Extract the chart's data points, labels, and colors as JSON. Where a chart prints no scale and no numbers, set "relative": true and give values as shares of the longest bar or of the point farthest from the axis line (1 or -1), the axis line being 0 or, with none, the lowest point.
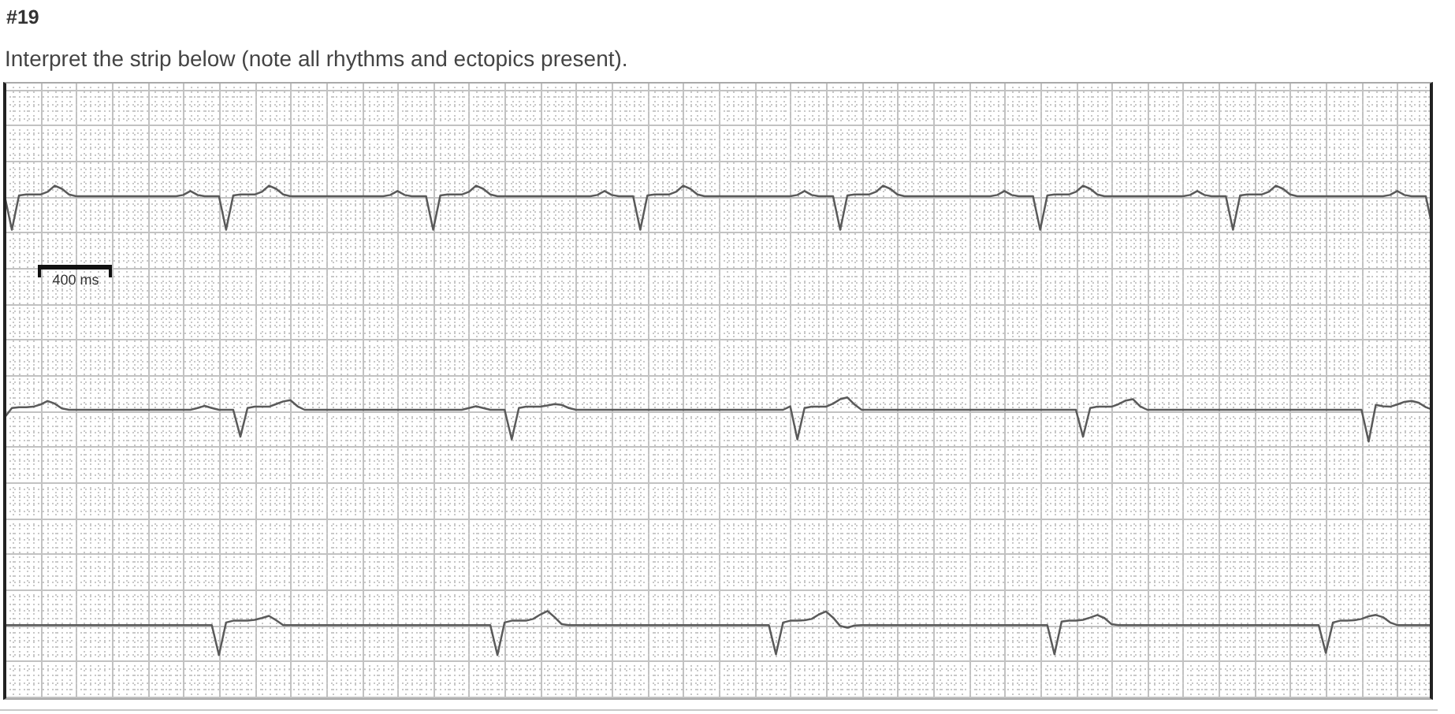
{
  "chart_data": [
    {
      "type": "line",
      "title": "#19",
      "subtitle": "Interpret the strip below (note all rhythms and ectopics present).",
      "annotations": [
        "400 ms"
      ],
      "relative": true,
      "grid": true,
      "marker": "none",
      "line_style": "solid",
      "tick_labels": false,
      "color": "#5a5a5a",
      "categories": [
        null,
        null,
        null,
        null,
        null,
        null,
        null,
        null,
        null,
        null,
        null,
        null,
        null,
        null,
        null,
        null,
        null,
        null,
        null,
        null,
        null,
        null,
        null,
        null,
        null,
        null,
        null,
        null,
        null,
        null,
        null,
        null,
        null,
        null,
        null,
        null,
        null,
        null,
        null,
        null,
        null,
        null,
        null,
        null,
        null,
        null,
        null,
        null,
        null,
        null,
        null,
        null,
        null,
        null,
        null,
        null,
        null,
        null,
        null,
        null,
        null,
        null,
        null,
        null,
        null,
        null,
        null,
        null,
        null,
        null,
        null,
        null,
        null,
        null,
        null,
        null,
        null,
        null,
        null,
        null,
        null,
        null,
        null,
        null,
        null,
        null,
        null,
        null,
        null,
        null,
        null,
        null,
        null,
        null,
        null,
        null,
        null,
        null,
        null,
        null,
        null,
        null,
        null,
        null,
        null,
        null,
        null,
        null,
        null,
        null,
        null,
        null,
        null,
        null,
        null,
        null,
        null,
        null,
        null,
        null,
        null,
        null,
        null,
        null,
        null,
        null,
        null,
        null,
        null,
        null,
        null,
        null,
        null,
        null,
        null,
        null,
        null,
        null,
        null,
        null,
        null,
        null,
        null,
        null,
        null,
        null,
        null,
        null,
        null,
        null,
        null,
        null,
        null,
        null,
        null,
        null,
        null,
        null,
        null,
        null,
        null,
        null,
        null,
        null,
        null,
        null,
        null,
        null,
        null,
        null,
        null,
        null,
        null,
        null,
        null,
        null,
        null,
        null,
        null,
        null,
        null,
        null,
        null,
        null,
        null,
        null,
        null,
        null,
        null,
        null,
        null,
        null,
        null,
        null,
        null,
        null,
        null,
        null,
        null,
        null,
        null
      ],
      "values": [
        0.76,
        0,
        0.78,
        0.8,
        0.8,
        0.8,
        0.86,
        1,
        0.93,
        0.8,
        0.76,
        0.76,
        0.76,
        0.76,
        0.76,
        0.76,
        0.76,
        0.76,
        0.76,
        0.76,
        0.76,
        0.76,
        0.76,
        0.76,
        0.76,
        0.79,
        0.88,
        0.79,
        0.76,
        0.76,
        0.76,
        0,
        0.78,
        0.8,
        0.8,
        0.8,
        0.86,
        1,
        0.93,
        0.8,
        0.76,
        0.76,
        0.76,
        0.76,
        0.76,
        0.76,
        0.76,
        0.76,
        0.76,
        0.76,
        0.76,
        0.76,
        0.76,
        0.76,
        0.79,
        0.88,
        0.79,
        0.76,
        0.76,
        0.76,
        0,
        0.78,
        0.8,
        0.8,
        0.8,
        0.86,
        1,
        0.93,
        0.8,
        0.76,
        0.76,
        0.76,
        0.76,
        0.76,
        0.76,
        0.76,
        0.76,
        0.76,
        0.76,
        0.76,
        0.76,
        0.76,
        0.76,
        0.79,
        0.88,
        0.79,
        0.76,
        0.76,
        0.76,
        0,
        0.78,
        0.8,
        0.8,
        0.8,
        0.86,
        1,
        0.93,
        0.8,
        0.76,
        0.76,
        0.76,
        0.76,
        0.76,
        0.76,
        0.76,
        0.76,
        0.76,
        0.76,
        0.76,
        0.76,
        0.76,
        0.79,
        0.88,
        0.79,
        0.76,
        0.76,
        0.76,
        0,
        0.78,
        0.8,
        0.8,
        0.8,
        0.86,
        1,
        0.93,
        0.8,
        0.76,
        0.76,
        0.76,
        0.76,
        0.76,
        0.76,
        0.76,
        0.76,
        0.76,
        0.76,
        0.76,
        0.76,
        0.76,
        0.79,
        0.88,
        0.79,
        0.76,
        0.76,
        0.76,
        0,
        0.78,
        0.8,
        0.8,
        0.8,
        0.86,
        1,
        0.93,
        0.8,
        0.76,
        0.76,
        0.76,
        0.76,
        0.76,
        0.76,
        0.76,
        0.76,
        0.76,
        0.76,
        0.76,
        0.76,
        0.79,
        0.88,
        0.79,
        0.76,
        0.76,
        0.76,
        0,
        0.78,
        0.8,
        0.8,
        0.8,
        0.86,
        1,
        0.93,
        0.8,
        0.76,
        0.76,
        0.76,
        0.76,
        0.76,
        0.76,
        0.76,
        0.76,
        0.76,
        0.76,
        0.76,
        0.76,
        0.76,
        0.79,
        0.88,
        0.79,
        0.76,
        0.76,
        0.76,
        0
      ]
    },
    {
      "type": "line",
      "relative": true,
      "grid": true,
      "marker": "none",
      "line_style": "solid",
      "tick_labels": false,
      "color": "#5a5a5a",
      "categories": [
        null,
        null,
        null,
        null,
        null,
        null,
        null,
        null,
        null,
        null,
        null,
        null,
        null,
        null,
        null,
        null,
        null,
        null,
        null,
        null,
        null,
        null,
        null,
        null,
        null,
        null,
        null,
        null,
        null,
        null,
        null,
        null,
        null,
        null,
        null,
        null,
        null,
        null,
        null,
        null,
        null,
        null,
        null,
        null,
        null,
        null,
        null,
        null,
        null,
        null,
        null,
        null,
        null,
        null,
        null,
        null,
        null,
        null,
        null,
        null,
        null,
        null,
        null,
        null,
        null,
        null,
        null,
        null,
        null,
        null,
        null,
        null,
        null,
        null,
        null,
        null,
        null,
        null,
        null,
        null,
        null,
        null,
        null,
        null,
        null,
        null,
        null,
        null,
        null,
        null,
        null,
        null,
        null,
        null,
        null,
        null,
        null,
        null,
        null,
        null,
        null,
        null,
        null,
        null,
        null,
        null,
        null,
        null,
        null,
        null,
        null,
        null,
        null,
        null,
        null,
        null,
        null,
        null,
        null,
        null,
        null,
        null,
        null,
        null,
        null,
        null,
        null,
        null,
        null,
        null,
        null,
        null,
        null,
        null,
        null,
        null,
        null,
        null,
        null,
        null,
        null,
        null,
        null,
        null,
        null,
        null,
        null,
        null,
        null,
        null,
        null,
        null,
        null,
        null,
        null,
        null,
        null,
        null,
        null,
        null,
        null,
        null,
        null,
        null,
        null,
        null,
        null,
        null,
        null,
        null,
        null,
        null,
        null,
        null,
        null,
        null,
        null,
        null,
        null,
        null,
        null,
        null,
        null,
        null,
        null,
        null,
        null,
        null,
        null,
        null,
        null,
        null,
        null,
        null,
        null,
        null,
        null,
        null,
        null,
        null,
        null
      ],
      "values": [
        0.55,
        0.76,
        0.78,
        0.78,
        0.79,
        0.84,
        0.92,
        0.86,
        0.75,
        0.72,
        0.72,
        0.72,
        0.72,
        0.72,
        0.72,
        0.72,
        0.72,
        0.72,
        0.72,
        0.72,
        0.72,
        0.72,
        0.72,
        0.72,
        0.72,
        0.72,
        0.72,
        0.76,
        0.81,
        0.76,
        0.72,
        0.72,
        0.72,
        0.11,
        0.76,
        0.79,
        0.79,
        0.79,
        0.85,
        0.91,
        0.94,
        0.8,
        0.72,
        0.72,
        0.72,
        0.72,
        0.72,
        0.72,
        0.72,
        0.72,
        0.72,
        0.72,
        0.72,
        0.72,
        0.72,
        0.72,
        0.72,
        0.72,
        0.72,
        0.72,
        0.72,
        0.72,
        0.72,
        0.72,
        0.72,
        0.76,
        0.8,
        0.76,
        0.72,
        0.72,
        0.72,
        0.05,
        0.76,
        0.79,
        0.79,
        0.79,
        0.82,
        0.85,
        0.83,
        0.76,
        0.72,
        0.72,
        0.72,
        0.72,
        0.72,
        0.72,
        0.72,
        0.72,
        0.72,
        0.72,
        0.72,
        0.72,
        0.72,
        0.72,
        0.72,
        0.72,
        0.72,
        0.72,
        0.72,
        0.72,
        0.72,
        0.72,
        0.72,
        0.72,
        0.72,
        0.72,
        0.72,
        0.72,
        0.72,
        0.72,
        0.8,
        0.05,
        0.76,
        0.79,
        0.79,
        0.79,
        0.86,
        0.96,
        1,
        0.84,
        0.72,
        0.72,
        0.72,
        0.72,
        0.72,
        0.72,
        0.72,
        0.72,
        0.72,
        0.72,
        0.72,
        0.72,
        0.72,
        0.72,
        0.72,
        0.72,
        0.72,
        0.72,
        0.72,
        0.72,
        0.72,
        0.72,
        0.72,
        0.72,
        0.72,
        0.72,
        0.72,
        0.72,
        0.72,
        0.72,
        0.72,
        0.11,
        0.76,
        0.79,
        0.79,
        0.79,
        0.85,
        0.93,
        0.96,
        0.8,
        0.72,
        0.72,
        0.72,
        0.72,
        0.72,
        0.72,
        0.72,
        0.72,
        0.72,
        0.72,
        0.72,
        0.72,
        0.72,
        0.72,
        0.72,
        0.72,
        0.72,
        0.72,
        0.72,
        0.72,
        0.72,
        0.72,
        0.72,
        0.72,
        0.72,
        0.72,
        0.72,
        0.72,
        0.72,
        0.72,
        0.72,
        0,
        0.83,
        0.8,
        0.79,
        0.84,
        0.9,
        0.92,
        0.88,
        0.78,
        0.72
      ]
    },
    {
      "type": "line",
      "relative": true,
      "grid": true,
      "marker": "none",
      "line_style": "solid",
      "tick_labels": false,
      "color": "#5a5a5a",
      "categories": [
        null,
        null,
        null,
        null,
        null,
        null,
        null,
        null,
        null,
        null,
        null,
        null,
        null,
        null,
        null,
        null,
        null,
        null,
        null,
        null,
        null,
        null,
        null,
        null,
        null,
        null,
        null,
        null,
        null,
        null,
        null,
        null,
        null,
        null,
        null,
        null,
        null,
        null,
        null,
        null,
        null,
        null,
        null,
        null,
        null,
        null,
        null,
        null,
        null,
        null,
        null,
        null,
        null,
        null,
        null,
        null,
        null,
        null,
        null,
        null,
        null,
        null,
        null,
        null,
        null,
        null,
        null,
        null,
        null,
        null,
        null,
        null,
        null,
        null,
        null,
        null,
        null,
        null,
        null,
        null,
        null,
        null,
        null,
        null,
        null,
        null,
        null,
        null,
        null,
        null,
        null,
        null,
        null,
        null,
        null,
        null,
        null,
        null,
        null,
        null,
        null,
        null,
        null,
        null,
        null,
        null,
        null,
        null,
        null,
        null,
        null,
        null,
        null,
        null,
        null,
        null,
        null,
        null,
        null,
        null,
        null,
        null,
        null,
        null,
        null,
        null,
        null,
        null,
        null,
        null,
        null,
        null,
        null,
        null,
        null,
        null,
        null,
        null,
        null,
        null,
        null,
        null,
        null,
        null,
        null,
        null,
        null,
        null,
        null,
        null,
        null,
        null,
        null,
        null,
        null,
        null,
        null,
        null,
        null,
        null,
        null,
        null,
        null,
        null,
        null,
        null,
        null,
        null,
        null,
        null,
        null,
        null,
        null,
        null,
        null,
        null,
        null,
        null,
        null,
        null,
        null,
        null,
        null,
        null,
        null,
        null,
        null,
        null,
        null,
        null,
        null,
        null,
        null,
        null,
        null,
        null,
        null,
        null,
        null,
        null,
        null
      ],
      "values": [
        0.68,
        0.68,
        0.68,
        0.68,
        0.68,
        0.68,
        0.68,
        0.68,
        0.68,
        0.68,
        0.68,
        0.68,
        0.68,
        0.68,
        0.68,
        0.68,
        0.68,
        0.68,
        0.68,
        0.68,
        0.68,
        0.68,
        0.68,
        0.68,
        0.68,
        0.68,
        0.68,
        0.68,
        0.68,
        0.68,
        0,
        0.74,
        0.78,
        0.78,
        0.78,
        0.8,
        0.84,
        0.89,
        0.79,
        0.68,
        0.68,
        0.68,
        0.68,
        0.68,
        0.68,
        0.68,
        0.68,
        0.68,
        0.68,
        0.68,
        0.68,
        0.68,
        0.68,
        0.68,
        0.68,
        0.68,
        0.68,
        0.68,
        0.68,
        0.68,
        0.68,
        0.68,
        0.68,
        0.68,
        0.68,
        0.68,
        0.68,
        0.68,
        0.68,
        0,
        0.74,
        0.78,
        0.78,
        0.78,
        0.82,
        0.92,
        1,
        0.86,
        0.7,
        0.68,
        0.68,
        0.68,
        0.68,
        0.68,
        0.68,
        0.68,
        0.68,
        0.68,
        0.68,
        0.68,
        0.68,
        0.68,
        0.68,
        0.68,
        0.68,
        0.68,
        0.68,
        0.68,
        0.68,
        0.68,
        0.68,
        0.68,
        0.68,
        0.68,
        0.68,
        0.68,
        0.68,
        0.68,
        0.02,
        0.74,
        0.78,
        0.78,
        0.79,
        0.82,
        0.92,
        0.99,
        0.85,
        0.66,
        0.62,
        0.67,
        0.68,
        0.68,
        0.68,
        0.68,
        0.68,
        0.68,
        0.68,
        0.68,
        0.68,
        0.68,
        0.68,
        0.68,
        0.68,
        0.68,
        0.68,
        0.68,
        0.68,
        0.68,
        0.68,
        0.68,
        0.68,
        0.68,
        0.68,
        0.68,
        0.68,
        0.68,
        0.68,
        0.02,
        0.76,
        0.78,
        0.78,
        0.8,
        0.85,
        0.91,
        0.84,
        0.7,
        0.68,
        0.68,
        0.68,
        0.68,
        0.68,
        0.68,
        0.68,
        0.68,
        0.68,
        0.68,
        0.68,
        0.68,
        0.68,
        0.68,
        0.68,
        0.68,
        0.68,
        0.68,
        0.68,
        0.68,
        0.68,
        0.68,
        0.68,
        0.68,
        0.68,
        0.68,
        0.68,
        0.68,
        0.68,
        0.05,
        0.74,
        0.78,
        0.78,
        0.79,
        0.82,
        0.88,
        0.91,
        0.86,
        0.74,
        0.68,
        0.68,
        0.68,
        0.68,
        0.68,
        0.68
      ]
    }
  ]
}
